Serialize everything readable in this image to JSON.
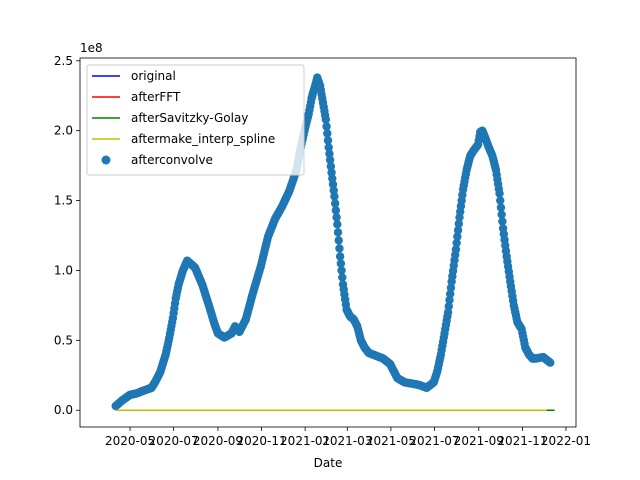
{
  "chart_data": {
    "type": "scatter",
    "xlabel": "Date",
    "ylabel": "",
    "y_offset_label": "1e8",
    "y_scale": 100000000,
    "ylim": [
      -0.12,
      2.52
    ],
    "xlim": [
      "2020-02-21",
      "2022-01-15"
    ],
    "x_ticks": [
      "2020-05",
      "2020-07",
      "2020-09",
      "2020-11",
      "2021-01",
      "2021-03",
      "2021-05",
      "2021-07",
      "2021-09",
      "2021-11",
      "2022-01"
    ],
    "x_tick_dates": [
      "2020-05-01",
      "2020-07-01",
      "2020-09-01",
      "2020-11-01",
      "2021-01-01",
      "2021-03-01",
      "2021-05-01",
      "2021-07-01",
      "2021-09-01",
      "2021-11-01",
      "2022-01-01"
    ],
    "y_ticks": [
      "0.0",
      "0.5",
      "1.0",
      "1.5",
      "2.0",
      "2.5"
    ],
    "y_tick_values": [
      0,
      0.5,
      1.0,
      1.5,
      2.0,
      2.5
    ],
    "legend_position": "upper left",
    "grid": false,
    "series": [
      {
        "name": "original",
        "kind": "line",
        "color": "#0000ff",
        "x": [
          "2020-04-11",
          "2021-12-10"
        ],
        "y": [
          0,
          0
        ]
      },
      {
        "name": "afterFFT",
        "kind": "line",
        "color": "#ff0000",
        "x": [
          "2020-04-11",
          "2021-12-10"
        ],
        "y": [
          0,
          0
        ]
      },
      {
        "name": "afterSavitzky-Golay",
        "kind": "line",
        "color": "#008000",
        "x": [
          "2020-04-11",
          "2021-12-16"
        ],
        "y": [
          0,
          0
        ]
      },
      {
        "name": "aftermake_interp_spline",
        "kind": "line",
        "color": "#bfbf00",
        "x": [
          "2020-04-11",
          "2021-12-05"
        ],
        "y": [
          0,
          0
        ]
      },
      {
        "name": "afterconvolve",
        "kind": "scatter",
        "color": "#1f77b4",
        "x": [
          "2020-04-11",
          "2020-04-20",
          "2020-05-01",
          "2020-05-10",
          "2020-05-20",
          "2020-05-31",
          "2020-06-05",
          "2020-06-12",
          "2020-06-20",
          "2020-06-25",
          "2020-06-30",
          "2020-07-04",
          "2020-07-08",
          "2020-07-14",
          "2020-07-20",
          "2020-07-31",
          "2020-08-10",
          "2020-08-20",
          "2020-08-27",
          "2020-09-01",
          "2020-09-10",
          "2020-09-20",
          "2020-09-25",
          "2020-10-01",
          "2020-10-10",
          "2020-10-20",
          "2020-10-31",
          "2020-11-10",
          "2020-11-20",
          "2020-11-30",
          "2020-12-10",
          "2020-12-20",
          "2020-12-25",
          "2021-01-01",
          "2021-01-06",
          "2021-01-10",
          "2021-01-12",
          "2021-01-15",
          "2021-01-18",
          "2021-01-22",
          "2021-01-26",
          "2021-01-30",
          "2021-02-03",
          "2021-02-07",
          "2021-02-11",
          "2021-02-15",
          "2021-02-19",
          "2021-02-23",
          "2021-02-28",
          "2021-03-05",
          "2021-03-10",
          "2021-03-15",
          "2021-03-20",
          "2021-03-25",
          "2021-03-31",
          "2021-04-10",
          "2021-04-20",
          "2021-04-30",
          "2021-05-10",
          "2021-05-20",
          "2021-05-31",
          "2021-06-10",
          "2021-06-20",
          "2021-06-30",
          "2021-07-05",
          "2021-07-10",
          "2021-07-15",
          "2021-07-20",
          "2021-07-25",
          "2021-07-31",
          "2021-08-05",
          "2021-08-10",
          "2021-08-15",
          "2021-08-20",
          "2021-08-25",
          "2021-08-31",
          "2021-09-03",
          "2021-09-06",
          "2021-09-10",
          "2021-09-15",
          "2021-09-20",
          "2021-09-25",
          "2021-09-30",
          "2021-10-05",
          "2021-10-10",
          "2021-10-15",
          "2021-10-20",
          "2021-10-25",
          "2021-10-31",
          "2021-11-05",
          "2021-11-10",
          "2021-11-15",
          "2021-11-20",
          "2021-11-30",
          "2021-12-05",
          "2021-12-10"
        ],
        "y": [
          0.03,
          0.07,
          0.11,
          0.12,
          0.14,
          0.16,
          0.2,
          0.27,
          0.4,
          0.52,
          0.66,
          0.8,
          0.9,
          1.0,
          1.07,
          1.02,
          0.9,
          0.74,
          0.62,
          0.55,
          0.52,
          0.55,
          0.6,
          0.56,
          0.65,
          0.84,
          1.03,
          1.24,
          1.37,
          1.46,
          1.57,
          1.72,
          1.86,
          2.02,
          2.12,
          2.23,
          2.27,
          2.32,
          2.38,
          2.32,
          2.2,
          2.08,
          1.88,
          1.7,
          1.53,
          1.33,
          1.1,
          0.9,
          0.72,
          0.67,
          0.65,
          0.6,
          0.5,
          0.45,
          0.41,
          0.39,
          0.37,
          0.33,
          0.23,
          0.2,
          0.19,
          0.18,
          0.16,
          0.2,
          0.28,
          0.4,
          0.55,
          0.7,
          0.92,
          1.15,
          1.38,
          1.58,
          1.72,
          1.82,
          1.86,
          1.9,
          1.99,
          2.0,
          1.95,
          1.88,
          1.82,
          1.72,
          1.55,
          1.3,
          1.1,
          0.92,
          0.75,
          0.63,
          0.58,
          0.45,
          0.4,
          0.37,
          0.37,
          0.38,
          0.36,
          0.34
        ]
      }
    ]
  }
}
